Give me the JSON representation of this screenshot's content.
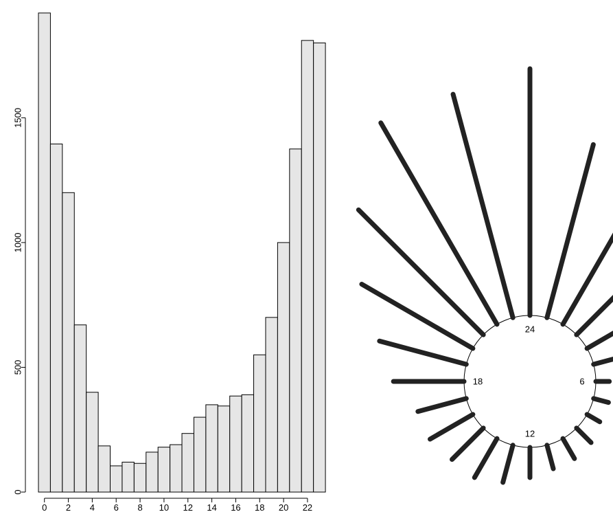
{
  "chart_data": [
    {
      "type": "bar",
      "title": "",
      "xlabel": "",
      "ylabel": "",
      "categories": [
        0,
        1,
        2,
        3,
        4,
        5,
        6,
        7,
        8,
        9,
        10,
        11,
        12,
        13,
        14,
        15,
        16,
        17,
        18,
        19,
        20,
        21,
        22,
        23
      ],
      "values": [
        1920,
        1395,
        1200,
        670,
        400,
        185,
        105,
        120,
        115,
        160,
        180,
        190,
        235,
        300,
        350,
        345,
        385,
        390,
        550,
        700,
        1000,
        1375,
        1810,
        1800
      ],
      "x_tick_labels": [
        "0",
        "2",
        "4",
        "6",
        "8",
        "10",
        "12",
        "14",
        "16",
        "18",
        "20",
        "22"
      ],
      "y_tick_labels": [
        "0",
        "500",
        "1000",
        "1500"
      ],
      "ylim": [
        0,
        1950
      ],
      "grid": false,
      "colors": {
        "bar_fill": "#e6e6e6",
        "bar_stroke": "#000000"
      }
    },
    {
      "type": "rose",
      "title": "",
      "hours": [
        1,
        2,
        3,
        4,
        5,
        6,
        7,
        8,
        9,
        10,
        11,
        12,
        13,
        14,
        15,
        16,
        17,
        18,
        19,
        20,
        21,
        22,
        23,
        24
      ],
      "values": [
        1395,
        1200,
        670,
        400,
        185,
        105,
        120,
        115,
        160,
        180,
        190,
        235,
        300,
        350,
        345,
        385,
        390,
        550,
        700,
        1000,
        1375,
        1810,
        1800,
        1920
      ],
      "hour_labels": [
        {
          "text": "24",
          "hour": 24
        },
        {
          "text": "6",
          "hour": 6
        },
        {
          "text": "12",
          "hour": 12
        },
        {
          "text": "18",
          "hour": 18
        }
      ],
      "colors": {
        "spoke": "#222222",
        "circle": "#000000"
      }
    }
  ]
}
